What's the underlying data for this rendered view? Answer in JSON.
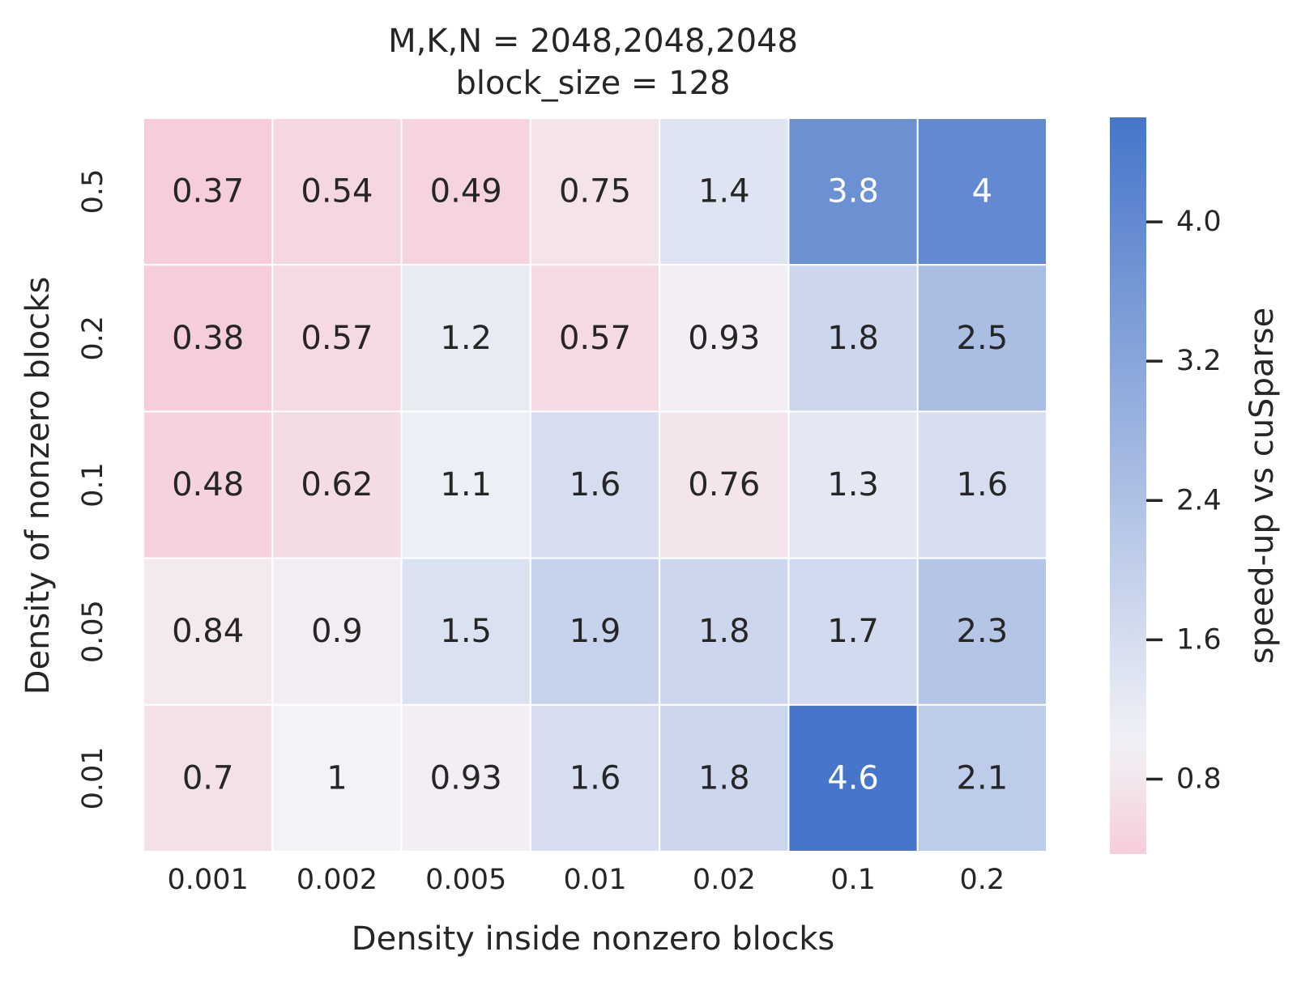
{
  "chart_data": {
    "type": "heatmap",
    "title": "M,K,N = 2048,2048,2048",
    "subtitle": "block_size = 128",
    "xlabel": "Density inside nonzero blocks",
    "ylabel": "Density of nonzero blocks",
    "x_categories": [
      "0.001",
      "0.002",
      "0.005",
      "0.01",
      "0.02",
      "0.1",
      "0.2"
    ],
    "y_categories": [
      "0.5",
      "0.2",
      "0.1",
      "0.05",
      "0.01"
    ],
    "values": [
      [
        0.37,
        0.54,
        0.49,
        0.75,
        1.4,
        3.8,
        4
      ],
      [
        0.38,
        0.57,
        1.2,
        0.57,
        0.93,
        1.8,
        2.5
      ],
      [
        0.48,
        0.62,
        1.1,
        1.6,
        0.76,
        1.3,
        1.6
      ],
      [
        0.84,
        0.9,
        1.5,
        1.9,
        1.8,
        1.7,
        2.3
      ],
      [
        0.7,
        1,
        0.93,
        1.6,
        1.8,
        4.6,
        2.1
      ]
    ],
    "cell_labels": [
      [
        "0.37",
        "0.54",
        "0.49",
        "0.75",
        "1.4",
        "3.8",
        "4"
      ],
      [
        "0.38",
        "0.57",
        "1.2",
        "0.57",
        "0.93",
        "1.8",
        "2.5"
      ],
      [
        "0.48",
        "0.62",
        "1.1",
        "1.6",
        "0.76",
        "1.3",
        "1.6"
      ],
      [
        "0.84",
        "0.9",
        "1.5",
        "1.9",
        "1.8",
        "1.7",
        "2.3"
      ],
      [
        "0.7",
        "1",
        "0.93",
        "1.6",
        "1.8",
        "4.6",
        "2.1"
      ]
    ],
    "colorbar": {
      "label": "speed-up vs cuSparse",
      "range": [
        0.37,
        4.6
      ],
      "center": 1,
      "ticks": [
        0.8,
        1.6,
        2.4,
        3.2,
        4.0
      ],
      "tick_labels": [
        "0.8",
        "1.6",
        "2.4",
        "3.2",
        "4.0"
      ],
      "low_color": "#f6cdd9",
      "mid_color": "#f2f2f7",
      "high_color": "#4675c9",
      "dark_text_color": "#262626",
      "light_text_color": "#ffffff"
    },
    "grid": false,
    "cell_border_color": "#ffffff"
  }
}
